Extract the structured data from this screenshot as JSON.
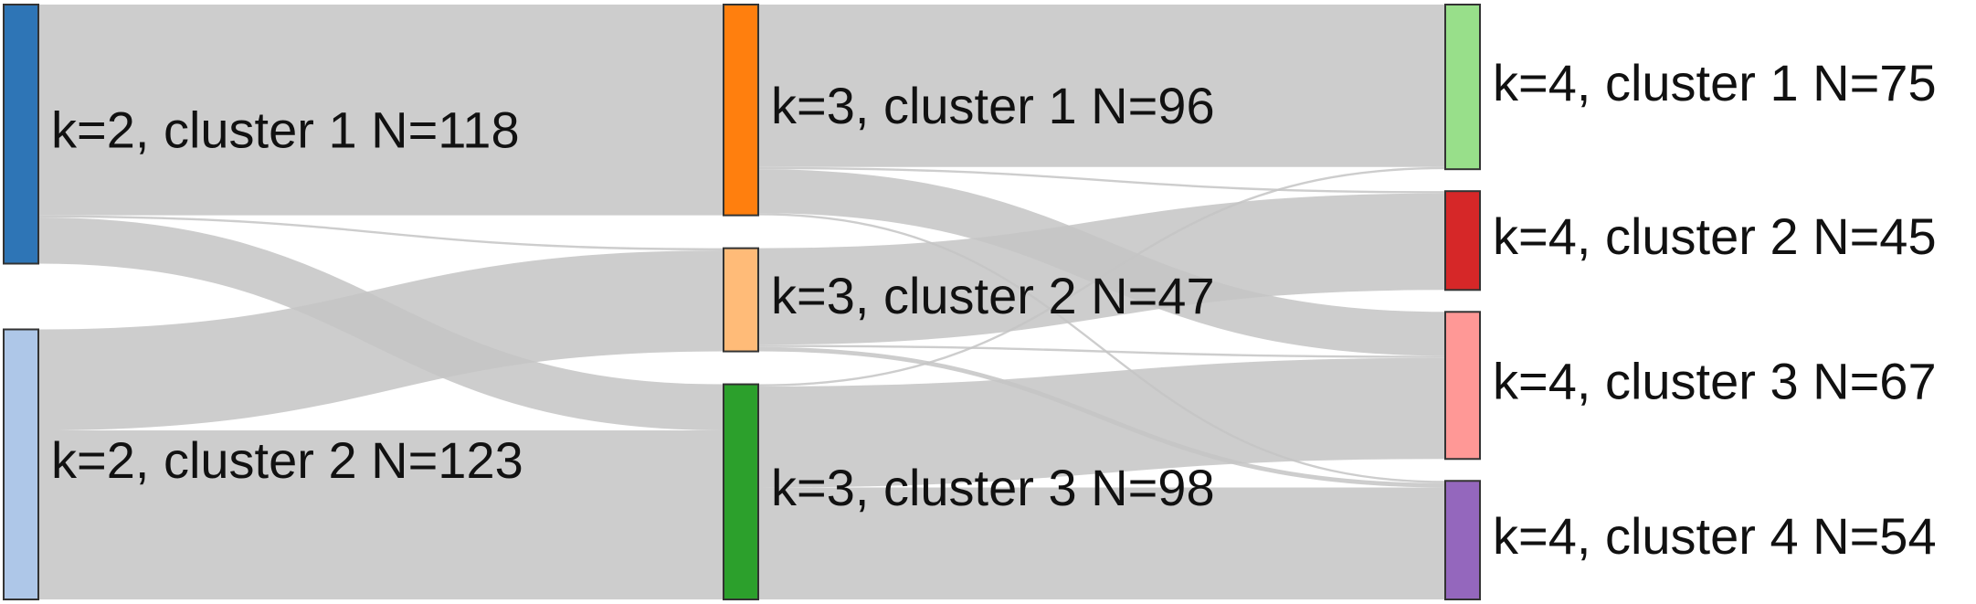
{
  "nodes": [
    {
      "id": "k2c1",
      "label": "k=2, cluster 1 N=118",
      "count": 118,
      "color": "#2e75b6"
    },
    {
      "id": "k2c2",
      "label": "k=2, cluster 2 N=123",
      "count": 123,
      "color": "#aec7e8"
    },
    {
      "id": "k3c1",
      "label": "k=3, cluster 1 N=96",
      "count": 96,
      "color": "#ff7f0e"
    },
    {
      "id": "k3c2",
      "label": "k=3, cluster 2 N=47",
      "count": 47,
      "color": "#ffbb78"
    },
    {
      "id": "k3c3",
      "label": "k=3, cluster 3 N=98",
      "count": 98,
      "color": "#2ca02c"
    },
    {
      "id": "k4c1",
      "label": "k=4, cluster 1 N=75",
      "count": 75,
      "color": "#98df8a"
    },
    {
      "id": "k4c2",
      "label": "k=4, cluster 2 N=45",
      "count": 45,
      "color": "#d62728"
    },
    {
      "id": "k4c3",
      "label": "k=4, cluster 3 N=67",
      "count": 67,
      "color": "#ff9896"
    },
    {
      "id": "k4c4",
      "label": "k=4, cluster 4 N=54",
      "count": 54,
      "color": "#9467bd"
    }
  ],
  "links": [
    {
      "source": "k2c1",
      "target": "k3c1",
      "value": 96
    },
    {
      "source": "k2c1",
      "target": "k3c2",
      "value": 1
    },
    {
      "source": "k2c1",
      "target": "k3c3",
      "value": 21
    },
    {
      "source": "k2c2",
      "target": "k3c2",
      "value": 46
    },
    {
      "source": "k2c2",
      "target": "k3c3",
      "value": 77
    },
    {
      "source": "k3c1",
      "target": "k4c1",
      "value": 74
    },
    {
      "source": "k3c1",
      "target": "k4c2",
      "value": 1
    },
    {
      "source": "k3c1",
      "target": "k4c3",
      "value": 20
    },
    {
      "source": "k3c1",
      "target": "k4c4",
      "value": 1
    },
    {
      "source": "k3c2",
      "target": "k4c2",
      "value": 44
    },
    {
      "source": "k3c2",
      "target": "k4c3",
      "value": 1
    },
    {
      "source": "k3c2",
      "target": "k4c4",
      "value": 2
    },
    {
      "source": "k3c3",
      "target": "k4c1",
      "value": 1
    },
    {
      "source": "k3c3",
      "target": "k4c3",
      "value": 46
    },
    {
      "source": "k3c3",
      "target": "k4c4",
      "value": 51
    }
  ]
}
